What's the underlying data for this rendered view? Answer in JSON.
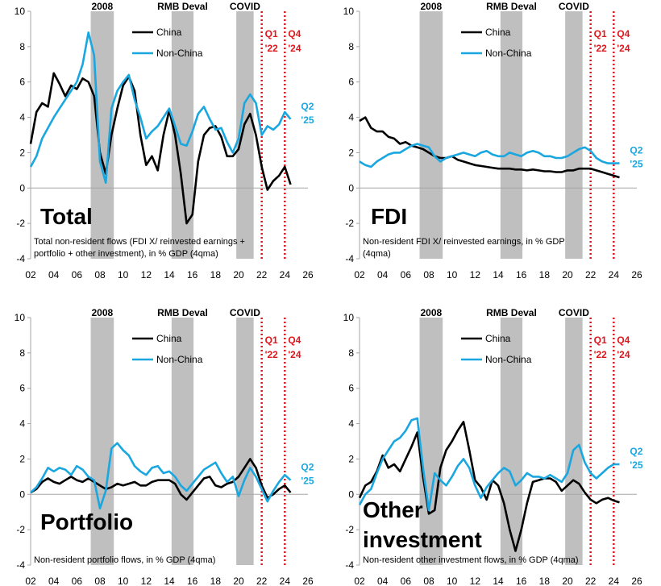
{
  "colors": {
    "china": "#000000",
    "non_china": "#1aa7e0",
    "event_band": "#bfbfbf",
    "marker": "#e0151b",
    "text": "#000000"
  },
  "events": [
    {
      "label": "2008",
      "start": 2007.2,
      "end": 2009.2
    },
    {
      "label": "RMB Deval",
      "start": 2014.2,
      "end": 2016.1
    },
    {
      "label": "COVID",
      "start": 2019.8,
      "end": 2021.3
    }
  ],
  "markers": [
    {
      "x": 2022.0,
      "label_line1": "Q1",
      "label_line2": "'22"
    },
    {
      "x": 2024.0,
      "label_line1": "Q4",
      "label_line2": "'24"
    }
  ],
  "chart_data": [
    {
      "type": "line",
      "title": "Total",
      "subtitle_lines": [
        "Total non-resident flows (FDI X/ reinvested earnings +",
        "portfolio + other investment), in % GDP (4qma)"
      ],
      "end_label_line1": "Q2",
      "end_label_line2": "'25",
      "show_legend": true,
      "xlim": [
        2002,
        2026
      ],
      "ylim": [
        -4,
        10
      ],
      "xticks": [
        "02",
        "04",
        "06",
        "08",
        "10",
        "12",
        "14",
        "16",
        "18",
        "20",
        "22",
        "24",
        "26"
      ],
      "yticks": [
        "-4",
        "-2",
        "0",
        "2",
        "4",
        "6",
        "8",
        "10"
      ],
      "series": [
        {
          "name": "China",
          "x": [
            2002.0,
            2002.5,
            2003.0,
            2003.5,
            2004.0,
            2004.5,
            2005.0,
            2005.5,
            2006.0,
            2006.5,
            2007.0,
            2007.5,
            2008.0,
            2008.5,
            2009.0,
            2009.5,
            2010.0,
            2010.5,
            2011.0,
            2011.5,
            2012.0,
            2012.5,
            2013.0,
            2013.5,
            2014.0,
            2014.5,
            2015.0,
            2015.5,
            2016.0,
            2016.5,
            2017.0,
            2017.5,
            2018.0,
            2018.5,
            2019.0,
            2019.5,
            2020.0,
            2020.5,
            2021.0,
            2021.5,
            2022.0,
            2022.5,
            2023.0,
            2023.5,
            2024.0,
            2024.5
          ],
          "values": [
            2.5,
            4.3,
            4.8,
            4.6,
            6.5,
            5.9,
            5.2,
            5.8,
            5.6,
            6.2,
            6.0,
            5.2,
            2.0,
            0.8,
            3.0,
            4.5,
            5.8,
            6.3,
            5.5,
            3.0,
            1.3,
            1.8,
            1.0,
            3.0,
            4.4,
            3.0,
            0.8,
            -2.0,
            -1.5,
            1.5,
            3.0,
            3.4,
            3.5,
            2.9,
            1.8,
            1.8,
            2.2,
            3.6,
            4.2,
            3.0,
            1.2,
            -0.1,
            0.4,
            0.7,
            1.2,
            0.2
          ]
        },
        {
          "name": "Non-China",
          "x": [
            2002.0,
            2002.5,
            2003.0,
            2003.5,
            2004.0,
            2004.5,
            2005.0,
            2005.5,
            2006.0,
            2006.5,
            2007.0,
            2007.5,
            2008.0,
            2008.5,
            2009.0,
            2009.5,
            2010.0,
            2010.5,
            2011.0,
            2011.5,
            2012.0,
            2012.5,
            2013.0,
            2013.5,
            2014.0,
            2014.5,
            2015.0,
            2015.5,
            2016.0,
            2016.5,
            2017.0,
            2017.5,
            2018.0,
            2018.5,
            2019.0,
            2019.5,
            2020.0,
            2020.5,
            2021.0,
            2021.5,
            2022.0,
            2022.5,
            2023.0,
            2023.5,
            2024.0,
            2024.5
          ],
          "values": [
            1.2,
            1.8,
            2.8,
            3.4,
            4.0,
            4.5,
            5.0,
            5.5,
            6.0,
            7.0,
            8.8,
            7.5,
            1.5,
            0.3,
            4.5,
            5.5,
            6.0,
            6.4,
            5.0,
            4.0,
            2.8,
            3.2,
            3.5,
            4.0,
            4.5,
            3.5,
            2.5,
            2.4,
            3.2,
            4.2,
            4.6,
            3.9,
            3.3,
            3.4,
            2.6,
            2.0,
            2.8,
            4.8,
            5.3,
            4.8,
            3.0,
            3.5,
            3.3,
            3.6,
            4.3,
            3.9
          ]
        }
      ]
    },
    {
      "type": "line",
      "title": "FDI",
      "subtitle_lines": [
        "Non-resident FDI X/ reinvested earnings, in % GDP",
        "(4qma)"
      ],
      "end_label_line1": "Q2",
      "end_label_line2": "'25",
      "show_legend": true,
      "xlim": [
        2002,
        2026
      ],
      "ylim": [
        -4,
        10
      ],
      "xticks": [
        "02",
        "04",
        "06",
        "08",
        "10",
        "12",
        "14",
        "16",
        "18",
        "20",
        "22",
        "24",
        "26"
      ],
      "yticks": [
        "-4",
        "-2",
        "0",
        "2",
        "4",
        "6",
        "8",
        "10"
      ],
      "series": [
        {
          "name": "China",
          "x": [
            2002.0,
            2002.5,
            2003.0,
            2003.5,
            2004.0,
            2004.5,
            2005.0,
            2005.5,
            2006.0,
            2006.5,
            2007.0,
            2007.5,
            2008.0,
            2008.5,
            2009.0,
            2009.5,
            2010.0,
            2010.5,
            2011.0,
            2011.5,
            2012.0,
            2012.5,
            2013.0,
            2013.5,
            2014.0,
            2014.5,
            2015.0,
            2015.5,
            2016.0,
            2016.5,
            2017.0,
            2017.5,
            2018.0,
            2018.5,
            2019.0,
            2019.5,
            2020.0,
            2020.5,
            2021.0,
            2021.5,
            2022.0,
            2022.5,
            2023.0,
            2023.5,
            2024.0,
            2024.5
          ],
          "values": [
            3.8,
            4.0,
            3.4,
            3.2,
            3.2,
            2.9,
            2.8,
            2.5,
            2.6,
            2.4,
            2.3,
            2.2,
            2.0,
            1.8,
            1.7,
            1.7,
            1.8,
            1.6,
            1.5,
            1.4,
            1.3,
            1.25,
            1.2,
            1.15,
            1.1,
            1.1,
            1.1,
            1.05,
            1.05,
            1.0,
            1.05,
            1.0,
            0.95,
            0.95,
            0.9,
            0.9,
            1.0,
            1.0,
            1.1,
            1.1,
            1.1,
            1.0,
            0.9,
            0.8,
            0.7,
            0.6
          ]
        },
        {
          "name": "Non-China",
          "x": [
            2002.0,
            2002.5,
            2003.0,
            2003.5,
            2004.0,
            2004.5,
            2005.0,
            2005.5,
            2006.0,
            2006.5,
            2007.0,
            2007.5,
            2008.0,
            2008.5,
            2009.0,
            2009.5,
            2010.0,
            2010.5,
            2011.0,
            2011.5,
            2012.0,
            2012.5,
            2013.0,
            2013.5,
            2014.0,
            2014.5,
            2015.0,
            2015.5,
            2016.0,
            2016.5,
            2017.0,
            2017.5,
            2018.0,
            2018.5,
            2019.0,
            2019.5,
            2020.0,
            2020.5,
            2021.0,
            2021.5,
            2022.0,
            2022.5,
            2023.0,
            2023.5,
            2024.0,
            2024.5
          ],
          "values": [
            1.5,
            1.3,
            1.2,
            1.5,
            1.7,
            1.9,
            2.0,
            2.0,
            2.2,
            2.4,
            2.5,
            2.4,
            2.3,
            1.8,
            1.5,
            1.7,
            1.8,
            1.9,
            2.0,
            1.9,
            1.8,
            2.0,
            2.1,
            1.9,
            1.8,
            1.8,
            2.0,
            1.9,
            1.8,
            2.0,
            2.1,
            2.0,
            1.8,
            1.8,
            1.7,
            1.7,
            1.8,
            2.0,
            2.2,
            2.3,
            2.1,
            1.7,
            1.5,
            1.4,
            1.4,
            1.4
          ]
        }
      ]
    },
    {
      "type": "line",
      "title": "Portfolio",
      "subtitle_lines": [
        "Non-resident portfolio flows, in % GDP (4qma)"
      ],
      "end_label_line1": "Q2",
      "end_label_line2": "'25",
      "show_legend": true,
      "xlim": [
        2002,
        2026
      ],
      "ylim": [
        -4,
        10
      ],
      "xticks": [
        "02",
        "04",
        "06",
        "08",
        "10",
        "12",
        "14",
        "16",
        "18",
        "20",
        "22",
        "24",
        "26"
      ],
      "yticks": [
        "-4",
        "-2",
        "0",
        "2",
        "4",
        "6",
        "8",
        "10"
      ],
      "series": [
        {
          "name": "China",
          "x": [
            2002.0,
            2002.5,
            2003.0,
            2003.5,
            2004.0,
            2004.5,
            2005.0,
            2005.5,
            2006.0,
            2006.5,
            2007.0,
            2007.5,
            2008.0,
            2008.5,
            2009.0,
            2009.5,
            2010.0,
            2010.5,
            2011.0,
            2011.5,
            2012.0,
            2012.5,
            2013.0,
            2013.5,
            2014.0,
            2014.5,
            2015.0,
            2015.5,
            2016.0,
            2016.5,
            2017.0,
            2017.5,
            2018.0,
            2018.5,
            2019.0,
            2019.5,
            2020.0,
            2020.5,
            2021.0,
            2021.5,
            2022.0,
            2022.5,
            2023.0,
            2023.5,
            2024.0,
            2024.5
          ],
          "values": [
            0.1,
            0.3,
            0.7,
            0.9,
            0.7,
            0.6,
            0.8,
            1.0,
            0.8,
            0.7,
            0.9,
            0.7,
            0.5,
            0.3,
            0.4,
            0.6,
            0.5,
            0.6,
            0.7,
            0.5,
            0.5,
            0.7,
            0.8,
            0.8,
            0.8,
            0.6,
            0.0,
            -0.3,
            0.1,
            0.5,
            0.9,
            1.0,
            0.5,
            0.4,
            0.6,
            0.7,
            1.0,
            1.5,
            2.0,
            1.5,
            0.5,
            -0.2,
            0.0,
            0.3,
            0.5,
            0.1
          ]
        },
        {
          "name": "Non-China",
          "x": [
            2002.0,
            2002.5,
            2003.0,
            2003.5,
            2004.0,
            2004.5,
            2005.0,
            2005.5,
            2006.0,
            2006.5,
            2007.0,
            2007.5,
            2008.0,
            2008.5,
            2009.0,
            2009.5,
            2010.0,
            2010.5,
            2011.0,
            2011.5,
            2012.0,
            2012.5,
            2013.0,
            2013.5,
            2014.0,
            2014.5,
            2015.0,
            2015.5,
            2016.0,
            2016.5,
            2017.0,
            2017.5,
            2018.0,
            2018.5,
            2019.0,
            2019.5,
            2020.0,
            2020.5,
            2021.0,
            2021.5,
            2022.0,
            2022.5,
            2023.0,
            2023.5,
            2024.0,
            2024.5
          ],
          "values": [
            0.1,
            0.4,
            0.9,
            1.5,
            1.3,
            1.5,
            1.4,
            1.1,
            1.6,
            1.4,
            1.0,
            0.8,
            -0.8,
            0.2,
            2.6,
            2.9,
            2.5,
            2.2,
            1.6,
            1.3,
            1.1,
            1.5,
            1.6,
            1.2,
            1.3,
            1.0,
            0.5,
            0.2,
            0.6,
            1.0,
            1.4,
            1.6,
            1.8,
            1.2,
            0.7,
            1.0,
            -0.1,
            0.8,
            1.5,
            1.0,
            0.3,
            -0.4,
            0.2,
            0.7,
            1.1,
            0.8
          ]
        }
      ]
    },
    {
      "type": "line",
      "title": "Other investment",
      "title_lines": [
        "Other",
        "investment"
      ],
      "subtitle_lines": [
        "Non-resident other investment flows, in % GDP (4qma)"
      ],
      "end_label_line1": "Q2",
      "end_label_line2": "'25",
      "show_legend": true,
      "xlim": [
        2002,
        2026
      ],
      "ylim": [
        -4,
        10
      ],
      "xticks": [
        "02",
        "04",
        "06",
        "08",
        "10",
        "12",
        "14",
        "16",
        "18",
        "20",
        "22",
        "24",
        "26"
      ],
      "yticks": [
        "-4",
        "-2",
        "0",
        "2",
        "4",
        "6",
        "8",
        "10"
      ],
      "series": [
        {
          "name": "China",
          "x": [
            2002.0,
            2002.5,
            2003.0,
            2003.5,
            2004.0,
            2004.5,
            2005.0,
            2005.5,
            2006.0,
            2006.5,
            2007.0,
            2007.5,
            2008.0,
            2008.5,
            2009.0,
            2009.5,
            2010.0,
            2010.5,
            2011.0,
            2011.5,
            2012.0,
            2012.5,
            2013.0,
            2013.5,
            2014.0,
            2014.5,
            2015.0,
            2015.5,
            2016.0,
            2016.5,
            2017.0,
            2017.5,
            2018.0,
            2018.5,
            2019.0,
            2019.5,
            2020.0,
            2020.5,
            2021.0,
            2021.5,
            2022.0,
            2022.5,
            2023.0,
            2023.5,
            2024.0,
            2024.5
          ],
          "values": [
            -0.2,
            0.5,
            0.7,
            1.3,
            2.2,
            1.5,
            1.7,
            1.3,
            2.0,
            2.7,
            3.5,
            1.0,
            -1.1,
            -0.9,
            1.5,
            2.5,
            3.0,
            3.6,
            4.1,
            2.5,
            0.8,
            0.4,
            -0.3,
            0.8,
            0.5,
            -0.5,
            -2.0,
            -3.2,
            -2.0,
            -0.5,
            0.7,
            0.8,
            0.9,
            0.9,
            0.7,
            0.2,
            0.5,
            0.8,
            0.6,
            0.1,
            -0.3,
            -0.5,
            -0.3,
            -0.2,
            -0.35,
            -0.45
          ]
        },
        {
          "name": "Non-China",
          "x": [
            2002.0,
            2002.5,
            2003.0,
            2003.5,
            2004.0,
            2004.5,
            2005.0,
            2005.5,
            2006.0,
            2006.5,
            2007.0,
            2007.5,
            2008.0,
            2008.5,
            2009.0,
            2009.5,
            2010.0,
            2010.5,
            2011.0,
            2011.5,
            2012.0,
            2012.5,
            2013.0,
            2013.5,
            2014.0,
            2014.5,
            2015.0,
            2015.5,
            2016.0,
            2016.5,
            2017.0,
            2017.5,
            2018.0,
            2018.5,
            2019.0,
            2019.5,
            2020.0,
            2020.5,
            2021.0,
            2021.5,
            2022.0,
            2022.5,
            2023.0,
            2023.5,
            2024.0,
            2024.5
          ],
          "values": [
            -0.6,
            0.0,
            0.3,
            1.2,
            2.0,
            2.5,
            3.0,
            3.2,
            3.6,
            4.2,
            4.3,
            1.5,
            -0.9,
            1.2,
            0.8,
            0.5,
            1.0,
            1.6,
            2.0,
            1.5,
            0.5,
            -0.2,
            0.4,
            0.8,
            1.2,
            1.5,
            1.3,
            0.5,
            0.8,
            1.2,
            1.0,
            1.0,
            0.9,
            1.1,
            0.9,
            0.7,
            1.2,
            2.5,
            2.8,
            1.8,
            1.2,
            0.9,
            1.2,
            1.5,
            1.7,
            1.7
          ]
        }
      ]
    }
  ]
}
